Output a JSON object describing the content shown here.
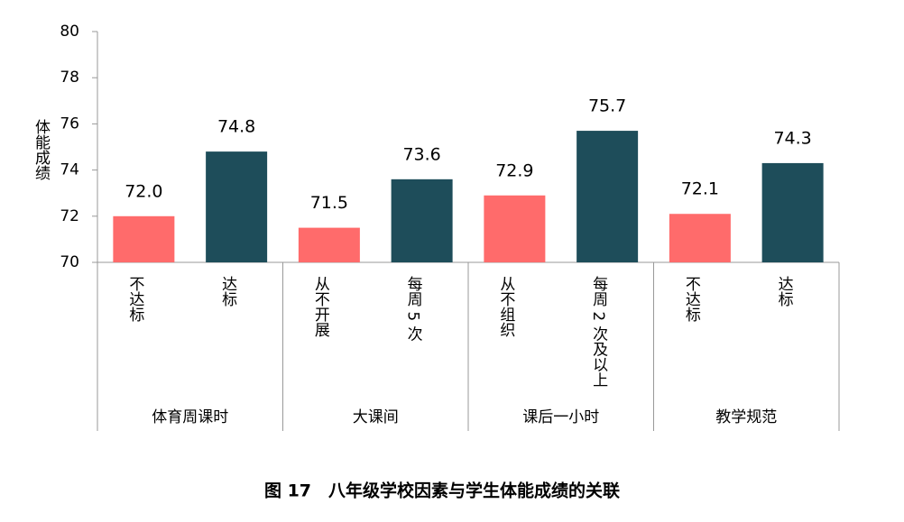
{
  "chart_data": {
    "type": "bar",
    "title": "图 17　八年级学校因素与学生体能成绩的关联",
    "y_label": "体能成绩",
    "groups": [
      "体育周课时",
      "大课间",
      "课后一小时",
      "教学规范"
    ],
    "categories": [
      "不达标",
      "达标",
      "从不开展",
      "每周 5 次",
      "从不组织",
      "每周 2 次及以上",
      "不达标",
      "达标"
    ],
    "values": [
      72.0,
      74.8,
      71.5,
      73.6,
      72.9,
      75.7,
      72.1,
      74.3
    ],
    "value_labels": [
      "72.0",
      "74.8",
      "71.5",
      "73.6",
      "72.9",
      "75.7",
      "72.1",
      "74.3"
    ],
    "colors": [
      "#ff6b6b",
      "#1e4d5a",
      "#ff6b6b",
      "#1e4d5a",
      "#ff6b6b",
      "#1e4d5a",
      "#ff6b6b",
      "#1e4d5a"
    ],
    "ylim": [
      70,
      80
    ],
    "yticks": [
      70,
      72,
      74,
      76,
      78,
      80
    ],
    "grid": false
  }
}
